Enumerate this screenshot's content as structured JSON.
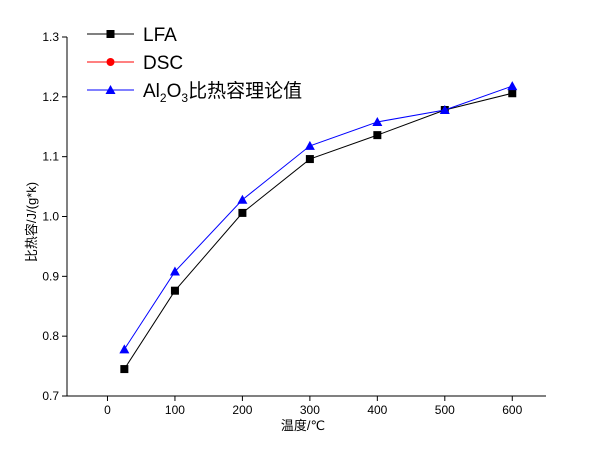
{
  "chart_data": {
    "type": "line",
    "xlabel": "温度/℃",
    "ylabel": "比热容/J/(g*k)",
    "xlim": [
      -60,
      650
    ],
    "ylim": [
      0.7,
      1.3
    ],
    "xticks": [
      0,
      100,
      200,
      300,
      400,
      500,
      600
    ],
    "yticks": [
      0.7,
      0.8,
      0.9,
      1.0,
      1.1,
      1.2,
      1.3
    ],
    "ytick_labels": [
      "0.7",
      "0.8",
      "0.9",
      "1.0",
      "1.1",
      "1.2",
      "1.3"
    ],
    "legend_position": "top-left",
    "grid": false,
    "series": [
      {
        "name": "LFA",
        "color": "#000000",
        "marker": "square",
        "x": [
          25,
          100,
          200,
          300,
          400,
          500,
          600
        ],
        "y": [
          0.745,
          0.876,
          1.006,
          1.096,
          1.136,
          1.178,
          1.206
        ]
      },
      {
        "name": "DSC",
        "color": "#ff0000",
        "marker": "circle",
        "x": [],
        "y": []
      },
      {
        "name": "Al2O3比热容理论值",
        "name_parts": [
          "Al",
          "2",
          "O",
          "3",
          "比热容理论值"
        ],
        "color": "#0000ff",
        "marker": "triangle",
        "x": [
          25,
          100,
          200,
          300,
          400,
          500,
          600
        ],
        "y": [
          0.778,
          0.908,
          1.028,
          1.118,
          1.158,
          1.178,
          1.218
        ]
      }
    ]
  }
}
